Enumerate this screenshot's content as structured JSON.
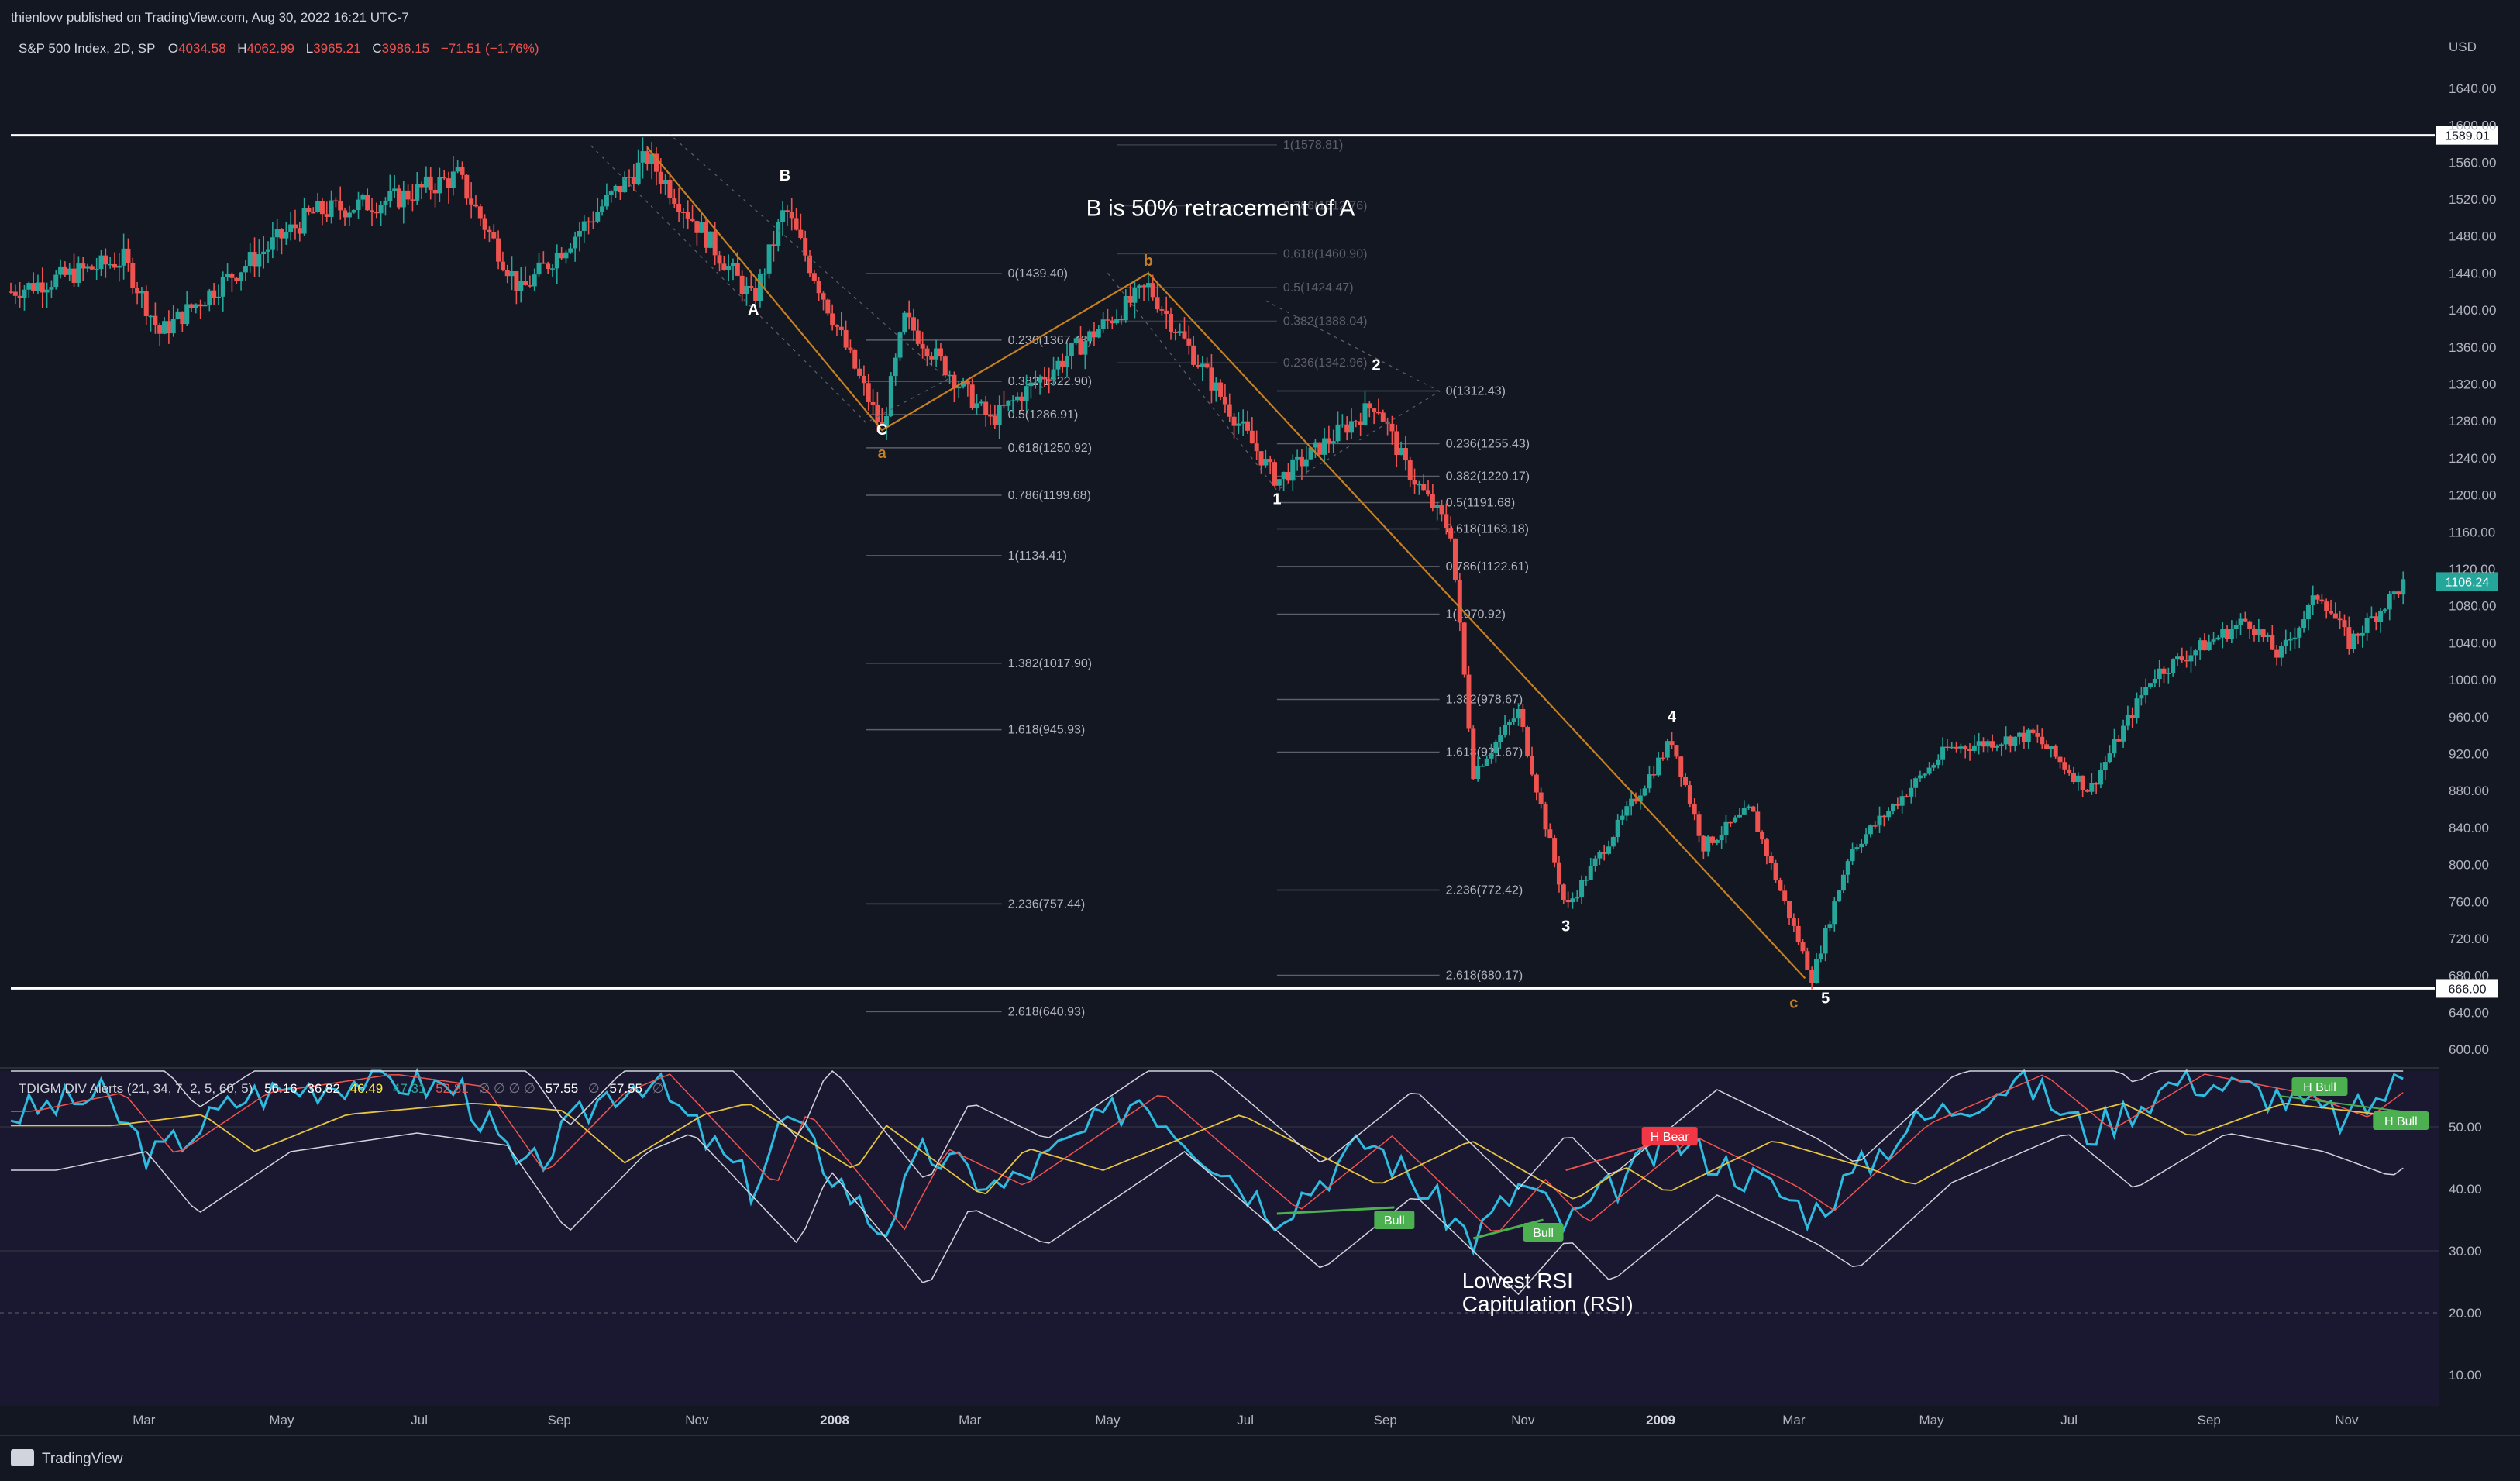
{
  "header": {
    "publisher": "thienlovv published on TradingView.com, Aug 30, 2022 16:21 UTC-7"
  },
  "footer": {
    "brand": "TradingView"
  },
  "colors": {
    "bg": "#131722",
    "up": "#26a69a",
    "down": "#ef5350",
    "wave": "#c77f1f",
    "fibLine": "#5d606b",
    "rsi": "#2ebbe0"
  },
  "chart_data": [
    {
      "type": "candlestick",
      "legend": {
        "symbol": "S&P 500 Index, 2D, SP",
        "o_label": "O",
        "o": "4034.58",
        "h_label": "H",
        "h": "4062.99",
        "l_label": "L",
        "l": "3965.21",
        "c_label": "C",
        "c": "3986.15",
        "chg": "−71.51 (−1.76%)"
      },
      "currency": "USD",
      "y_ticks": [
        "1640.00",
        "1600.00",
        "1560.00",
        "1520.00",
        "1480.00",
        "1440.00",
        "1400.00",
        "1360.00",
        "1320.00",
        "1280.00",
        "1240.00",
        "1200.00",
        "1160.00",
        "1120.00",
        "1080.00",
        "1040.00",
        "1000.00",
        "960.00",
        "920.00",
        "880.00",
        "840.00",
        "800.00",
        "760.00",
        "720.00",
        "680.00",
        "640.00",
        "600.00"
      ],
      "ylim": [
        580,
        1660
      ],
      "x_ticks": [
        "Mar",
        "May",
        "Jul",
        "Sep",
        "Nov",
        "2008",
        "Mar",
        "May",
        "Jul",
        "Sep",
        "Nov",
        "2009",
        "Mar",
        "May",
        "Jul",
        "Sep",
        "Nov"
      ],
      "horizontal_lines": [
        {
          "value": 1589.01,
          "label": "1589.01"
        },
        {
          "value": 666.0,
          "label": "666.00"
        }
      ],
      "last_price": {
        "value": 1106.24,
        "label": "1106.24"
      },
      "path_points": [
        {
          "date": "2007-01-01",
          "price": 1420
        },
        {
          "date": "2007-02-20",
          "price": 1455
        },
        {
          "date": "2007-03-08",
          "price": 1375
        },
        {
          "date": "2007-04-10",
          "price": 1440
        },
        {
          "date": "2007-05-15",
          "price": 1505
        },
        {
          "date": "2007-06-20",
          "price": 1520
        },
        {
          "date": "2007-07-18",
          "price": 1545
        },
        {
          "date": "2007-08-15",
          "price": 1420
        },
        {
          "date": "2007-09-25",
          "price": 1525
        },
        {
          "date": "2007-10-10",
          "price": 1565
        },
        {
          "date": "2007-11-26",
          "price": 1410
        },
        {
          "date": "2007-12-10",
          "price": 1510
        },
        {
          "date": "2008-01-22",
          "price": 1270
        },
        {
          "date": "2008-02-01",
          "price": 1390
        },
        {
          "date": "2008-03-10",
          "price": 1280
        },
        {
          "date": "2008-05-19",
          "price": 1425
        },
        {
          "date": "2008-07-15",
          "price": 1215
        },
        {
          "date": "2008-08-28",
          "price": 1300
        },
        {
          "date": "2008-09-10",
          "price": 1230
        },
        {
          "date": "2008-09-30",
          "price": 1160
        },
        {
          "date": "2008-10-10",
          "price": 900
        },
        {
          "date": "2008-10-30",
          "price": 965
        },
        {
          "date": "2008-11-20",
          "price": 752
        },
        {
          "date": "2009-01-06",
          "price": 935
        },
        {
          "date": "2009-01-20",
          "price": 820
        },
        {
          "date": "2009-02-10",
          "price": 860
        },
        {
          "date": "2009-03-09",
          "price": 677
        },
        {
          "date": "2009-03-26",
          "price": 815
        },
        {
          "date": "2009-05-08",
          "price": 925
        },
        {
          "date": "2009-06-15",
          "price": 940
        },
        {
          "date": "2009-07-10",
          "price": 880
        },
        {
          "date": "2009-08-07",
          "price": 1005
        },
        {
          "date": "2009-09-18",
          "price": 1065
        },
        {
          "date": "2009-10-02",
          "price": 1025
        },
        {
          "date": "2009-10-20",
          "price": 1095
        },
        {
          "date": "2009-11-02",
          "price": 1040
        },
        {
          "date": "2009-11-27",
          "price": 1106
        }
      ],
      "wave_labels": [
        {
          "text": "A",
          "date": "2007-11-26",
          "price": 1395,
          "color": "#ffffff"
        },
        {
          "text": "B",
          "date": "2007-12-10",
          "price": 1540,
          "color": "#ffffff"
        },
        {
          "text": "C",
          "date": "2008-01-22",
          "price": 1265,
          "color": "#ffffff"
        },
        {
          "text": "a",
          "date": "2008-01-22",
          "price": 1240,
          "color": "#c77f1f"
        },
        {
          "text": "b",
          "date": "2008-05-19",
          "price": 1448,
          "color": "#c77f1f"
        },
        {
          "text": "1",
          "date": "2008-07-15",
          "price": 1190,
          "color": "#ffffff"
        },
        {
          "text": "2",
          "date": "2008-08-28",
          "price": 1335,
          "color": "#ffffff"
        },
        {
          "text": "3",
          "date": "2008-11-20",
          "price": 728,
          "color": "#ffffff"
        },
        {
          "text": "4",
          "date": "2009-01-06",
          "price": 955,
          "color": "#ffffff"
        },
        {
          "text": "5",
          "date": "2009-03-15",
          "price": 650,
          "color": "#ffffff"
        },
        {
          "text": "c",
          "date": "2009-03-01",
          "price": 645,
          "color": "#c77f1f"
        }
      ],
      "wave_path": [
        {
          "date": "2007-10-10",
          "price": 1576
        },
        {
          "date": "2008-01-22",
          "price": 1270
        },
        {
          "date": "2008-05-19",
          "price": 1440
        },
        {
          "date": "2009-03-06",
          "price": 677
        }
      ],
      "fib_sets": [
        {
          "from": "2008-01-15",
          "to": "2008-03-15",
          "levels": [
            {
              "text": "0(1439.40)",
              "price": 1439.4
            },
            {
              "text": "0.236(1367.43)",
              "price": 1367.43
            },
            {
              "text": "0.382(1322.90)",
              "price": 1322.9
            },
            {
              "text": "0.5(1286.91)",
              "price": 1286.91
            },
            {
              "text": "0.618(1250.92)",
              "price": 1250.92
            },
            {
              "text": "0.786(1199.68)",
              "price": 1199.68
            },
            {
              "text": "1(1134.41)",
              "price": 1134.41
            },
            {
              "text": "1.382(1017.90)",
              "price": 1017.9
            },
            {
              "text": "1.618(945.93)",
              "price": 945.93
            },
            {
              "text": "2.236(757.44)",
              "price": 757.44
            },
            {
              "text": "2.618(640.93)",
              "price": 640.93
            }
          ]
        },
        {
          "from": "2008-07-15",
          "to": "2008-09-25",
          "levels": [
            {
              "text": "0(1312.43)",
              "price": 1312.43
            },
            {
              "text": "0.236(1255.43)",
              "price": 1255.43
            },
            {
              "text": "0.382(1220.17)",
              "price": 1220.17
            },
            {
              "text": "0.5(1191.68)",
              "price": 1191.68
            },
            {
              "text": "0.618(1163.18)",
              "price": 1163.18
            },
            {
              "text": "0.786(1122.61)",
              "price": 1122.61
            },
            {
              "text": "1(1070.92)",
              "price": 1070.92
            },
            {
              "text": "1.382(978.67)",
              "price": 978.67
            },
            {
              "text": "1.618(921.67)",
              "price": 921.67
            },
            {
              "text": "2.236(772.42)",
              "price": 772.42
            },
            {
              "text": "2.618(680.17)",
              "price": 680.17
            }
          ]
        },
        {
          "from": "2008-05-05",
          "to": "2008-07-15",
          "faded": true,
          "levels": [
            {
              "text": "1(1578.81)",
              "price": 1578.81
            },
            {
              "text": "0.786(1512.76)",
              "price": 1512.76
            },
            {
              "text": "0.618(1460.90)",
              "price": 1460.9
            },
            {
              "text": "0.5(1424.47)",
              "price": 1424.47
            },
            {
              "text": "0.382(1388.04)",
              "price": 1388.04
            },
            {
              "text": "0.236(1342.96)",
              "price": 1342.96
            }
          ]
        }
      ],
      "annotations": [
        {
          "text": "B is 50% retracement of A",
          "date": "2008-06-20",
          "price": 1502
        }
      ]
    },
    {
      "type": "line",
      "legend": {
        "title": "TDIGM DIV Alerts (21, 34, 7, 2, 5, 60, 5)",
        "v1": "56.16",
        "v2": "36.82",
        "v3": "46.49",
        "v4": "47.31",
        "v5": "52.81",
        "nulls": "∅ ∅ ∅ ∅",
        "v6": "57.55",
        "null2": "∅",
        "v7": "57.55",
        "null3": "∅"
      },
      "y_ticks": [
        "50.00",
        "40.00",
        "30.00",
        "20.00",
        "10.00"
      ],
      "ylim": [
        5,
        59
      ],
      "rsi_points": [
        {
          "date": "2007-01-01",
          "value": 52
        },
        {
          "date": "2007-02-10",
          "value": 55
        },
        {
          "date": "2007-03-05",
          "value": 45
        },
        {
          "date": "2007-04-15",
          "value": 55
        },
        {
          "date": "2007-06-10",
          "value": 58
        },
        {
          "date": "2007-07-20",
          "value": 56
        },
        {
          "date": "2007-08-16",
          "value": 42
        },
        {
          "date": "2007-09-20",
          "value": 55
        },
        {
          "date": "2007-10-10",
          "value": 58
        },
        {
          "date": "2007-11-26",
          "value": 40
        },
        {
          "date": "2007-12-10",
          "value": 52
        },
        {
          "date": "2008-01-22",
          "value": 33
        },
        {
          "date": "2008-02-10",
          "value": 46
        },
        {
          "date": "2008-03-15",
          "value": 40
        },
        {
          "date": "2008-05-15",
          "value": 55
        },
        {
          "date": "2008-07-15",
          "value": 36
        },
        {
          "date": "2008-08-25",
          "value": 48
        },
        {
          "date": "2008-10-10",
          "value": 32
        },
        {
          "date": "2008-11-01",
          "value": 41
        },
        {
          "date": "2008-11-20",
          "value": 34
        },
        {
          "date": "2009-01-06",
          "value": 48
        },
        {
          "date": "2009-02-20",
          "value": 40
        },
        {
          "date": "2009-03-09",
          "value": 36
        },
        {
          "date": "2009-04-20",
          "value": 50
        },
        {
          "date": "2009-06-10",
          "value": 58
        },
        {
          "date": "2009-07-10",
          "value": 49
        },
        {
          "date": "2009-08-20",
          "value": 58
        },
        {
          "date": "2009-10-02",
          "value": 55
        },
        {
          "date": "2009-11-01",
          "value": 51
        },
        {
          "date": "2009-11-27",
          "value": 58
        }
      ],
      "signals": [
        {
          "text": "Bull",
          "date": "2008-09-05",
          "value": 35,
          "color": "#4caf50"
        },
        {
          "text": "Bull",
          "date": "2008-11-10",
          "value": 33,
          "color": "#4caf50"
        },
        {
          "text": "H Bear",
          "date": "2009-01-05",
          "value": 48.5,
          "color": "#f23645"
        },
        {
          "text": "H Bull",
          "date": "2009-10-20",
          "value": 56.5,
          "color": "#4caf50"
        },
        {
          "text": "H Bull",
          "date": "2009-11-25",
          "value": 51,
          "color": "#4caf50"
        }
      ],
      "annotations": [
        {
          "text": "Lowest RSI",
          "date": "2008-10-05"
        },
        {
          "text": "Capitulation (RSI)",
          "date": "2008-10-05"
        }
      ]
    }
  ]
}
